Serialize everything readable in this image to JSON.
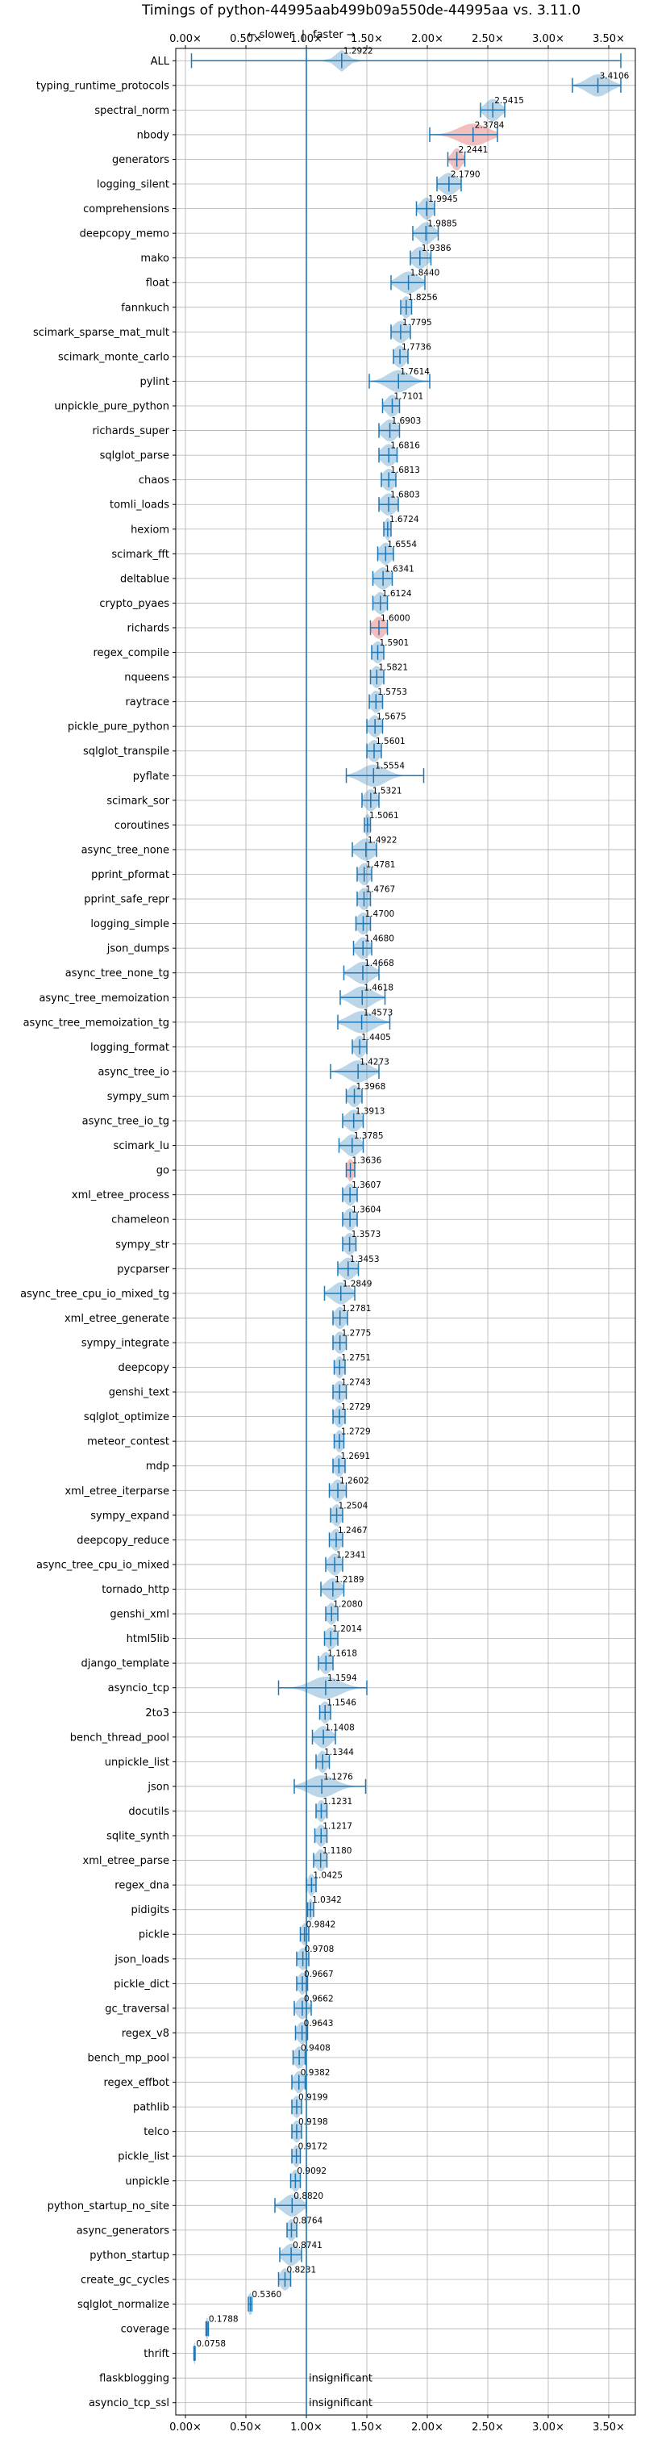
{
  "chart_data": {
    "type": "violin",
    "title": "Timings of python-44995aab499b09a550de-44995aa vs. 3.11.0",
    "direction_note": {
      "slower": "← slower",
      "divider": "|",
      "faster": "faster →"
    },
    "xlim": [
      -0.08,
      3.72
    ],
    "xticks": [
      0.0,
      0.5,
      1.0,
      1.5,
      2.0,
      2.5,
      3.0,
      3.5
    ],
    "xtick_labels": [
      "0.00×",
      "0.50×",
      "1.00×",
      "1.50×",
      "2.00×",
      "2.50×",
      "3.00×",
      "3.50×"
    ],
    "grid": true,
    "colors": {
      "normal": "#1f77b4",
      "significant_slower": "#d62728",
      "grid": "#b0b0b0",
      "reference": "#1f77b4"
    },
    "benchmarks": [
      {
        "name": "ALL",
        "median": 1.2922,
        "label": "1.2922",
        "lo": 0.05,
        "hi": 3.6,
        "spread": 0.05,
        "style": "all"
      },
      {
        "name": "typing_runtime_protocols",
        "median": 3.4106,
        "label": "3.4106",
        "lo": 3.2,
        "hi": 3.6,
        "spread": 0.09
      },
      {
        "name": "spectral_norm",
        "median": 2.5415,
        "label": "2.5415",
        "lo": 2.44,
        "hi": 2.64,
        "spread": 0.06
      },
      {
        "name": "nbody",
        "median": 2.3784,
        "label": "2.3784",
        "lo": 2.02,
        "hi": 2.58,
        "spread": 0.12,
        "tint": "red"
      },
      {
        "name": "generators",
        "median": 2.2441,
        "label": "2.2441",
        "lo": 2.17,
        "hi": 2.31,
        "spread": 0.04,
        "tint": "red"
      },
      {
        "name": "logging_silent",
        "median": 2.179,
        "label": "2.1790",
        "lo": 2.08,
        "hi": 2.28,
        "spread": 0.07
      },
      {
        "name": "comprehensions",
        "median": 1.9945,
        "label": "1.9945",
        "lo": 1.91,
        "hi": 2.06,
        "spread": 0.05
      },
      {
        "name": "deepcopy_memo",
        "median": 1.9885,
        "label": "1.9885",
        "lo": 1.88,
        "hi": 2.09,
        "spread": 0.06
      },
      {
        "name": "mako",
        "median": 1.9386,
        "label": "1.9386",
        "lo": 1.86,
        "hi": 2.03,
        "spread": 0.06
      },
      {
        "name": "float",
        "median": 1.844,
        "label": "1.8440",
        "lo": 1.7,
        "hi": 1.98,
        "spread": 0.08
      },
      {
        "name": "fannkuch",
        "median": 1.8256,
        "label": "1.8256",
        "lo": 1.78,
        "hi": 1.87,
        "spread": 0.04
      },
      {
        "name": "scimark_sparse_mat_mult",
        "median": 1.7795,
        "label": "1.7795",
        "lo": 1.7,
        "hi": 1.86,
        "spread": 0.06
      },
      {
        "name": "scimark_monte_carlo",
        "median": 1.7736,
        "label": "1.7736",
        "lo": 1.72,
        "hi": 1.84,
        "spread": 0.05
      },
      {
        "name": "pylint",
        "median": 1.7614,
        "label": "1.7614",
        "lo": 1.52,
        "hi": 2.02,
        "spread": 0.09
      },
      {
        "name": "unpickle_pure_python",
        "median": 1.7101,
        "label": "1.7101",
        "lo": 1.63,
        "hi": 1.77,
        "spread": 0.05
      },
      {
        "name": "richards_super",
        "median": 1.6903,
        "label": "1.6903",
        "lo": 1.6,
        "hi": 1.77,
        "spread": 0.06
      },
      {
        "name": "sqlglot_parse",
        "median": 1.6816,
        "label": "1.6816",
        "lo": 1.6,
        "hi": 1.75,
        "spread": 0.06
      },
      {
        "name": "chaos",
        "median": 1.6813,
        "label": "1.6813",
        "lo": 1.62,
        "hi": 1.74,
        "spread": 0.05
      },
      {
        "name": "tomli_loads",
        "median": 1.6803,
        "label": "1.6803",
        "lo": 1.6,
        "hi": 1.76,
        "spread": 0.06
      },
      {
        "name": "hexiom",
        "median": 1.6724,
        "label": "1.6724",
        "lo": 1.64,
        "hi": 1.7,
        "spread": 0.025
      },
      {
        "name": "scimark_fft",
        "median": 1.6554,
        "label": "1.6554",
        "lo": 1.59,
        "hi": 1.72,
        "spread": 0.05
      },
      {
        "name": "deltablue",
        "median": 1.6341,
        "label": "1.6341",
        "lo": 1.55,
        "hi": 1.71,
        "spread": 0.06
      },
      {
        "name": "crypto_pyaes",
        "median": 1.6124,
        "label": "1.6124",
        "lo": 1.55,
        "hi": 1.67,
        "spread": 0.05
      },
      {
        "name": "richards",
        "median": 1.6,
        "label": "1.6000",
        "lo": 1.53,
        "hi": 1.67,
        "spread": 0.05,
        "tint": "red"
      },
      {
        "name": "regex_compile",
        "median": 1.5901,
        "label": "1.5901",
        "lo": 1.54,
        "hi": 1.64,
        "spread": 0.045
      },
      {
        "name": "nqueens",
        "median": 1.5821,
        "label": "1.5821",
        "lo": 1.53,
        "hi": 1.64,
        "spread": 0.045
      },
      {
        "name": "raytrace",
        "median": 1.5753,
        "label": "1.5753",
        "lo": 1.52,
        "hi": 1.63,
        "spread": 0.045
      },
      {
        "name": "pickle_pure_python",
        "median": 1.5675,
        "label": "1.5675",
        "lo": 1.5,
        "hi": 1.63,
        "spread": 0.05
      },
      {
        "name": "sqlglot_transpile",
        "median": 1.5601,
        "label": "1.5601",
        "lo": 1.5,
        "hi": 1.62,
        "spread": 0.05
      },
      {
        "name": "pyflate",
        "median": 1.5554,
        "label": "1.5554",
        "lo": 1.33,
        "hi": 1.97,
        "spread": 0.1
      },
      {
        "name": "scimark_sor",
        "median": 1.5321,
        "label": "1.5321",
        "lo": 1.46,
        "hi": 1.6,
        "spread": 0.05
      },
      {
        "name": "coroutines",
        "median": 1.5061,
        "label": "1.5061",
        "lo": 1.48,
        "hi": 1.53,
        "spread": 0.025
      },
      {
        "name": "async_tree_none",
        "median": 1.4922,
        "label": "1.4922",
        "lo": 1.38,
        "hi": 1.58,
        "spread": 0.07
      },
      {
        "name": "pprint_pformat",
        "median": 1.4781,
        "label": "1.4781",
        "lo": 1.42,
        "hi": 1.54,
        "spread": 0.045
      },
      {
        "name": "pprint_safe_repr",
        "median": 1.4767,
        "label": "1.4767",
        "lo": 1.42,
        "hi": 1.53,
        "spread": 0.045
      },
      {
        "name": "logging_simple",
        "median": 1.47,
        "label": "1.4700",
        "lo": 1.41,
        "hi": 1.53,
        "spread": 0.05
      },
      {
        "name": "json_dumps",
        "median": 1.468,
        "label": "1.4680",
        "lo": 1.39,
        "hi": 1.54,
        "spread": 0.05
      },
      {
        "name": "async_tree_none_tg",
        "median": 1.4668,
        "label": "1.4668",
        "lo": 1.31,
        "hi": 1.6,
        "spread": 0.08
      },
      {
        "name": "async_tree_memoization",
        "median": 1.4618,
        "label": "1.4618",
        "lo": 1.28,
        "hi": 1.65,
        "spread": 0.09
      },
      {
        "name": "async_tree_memoization_tg",
        "median": 1.4573,
        "label": "1.4573",
        "lo": 1.26,
        "hi": 1.69,
        "spread": 0.1
      },
      {
        "name": "logging_format",
        "median": 1.4405,
        "label": "1.4405",
        "lo": 1.38,
        "hi": 1.5,
        "spread": 0.045
      },
      {
        "name": "async_tree_io",
        "median": 1.4273,
        "label": "1.4273",
        "lo": 1.2,
        "hi": 1.6,
        "spread": 0.09
      },
      {
        "name": "sympy_sum",
        "median": 1.3968,
        "label": "1.3968",
        "lo": 1.33,
        "hi": 1.46,
        "spread": 0.05
      },
      {
        "name": "async_tree_io_tg",
        "median": 1.3913,
        "label": "1.3913",
        "lo": 1.3,
        "hi": 1.47,
        "spread": 0.06
      },
      {
        "name": "scimark_lu",
        "median": 1.3785,
        "label": "1.3785",
        "lo": 1.27,
        "hi": 1.47,
        "spread": 0.06
      },
      {
        "name": "go",
        "median": 1.3636,
        "label": "1.3636",
        "lo": 1.33,
        "hi": 1.4,
        "spread": 0.03,
        "tint": "red"
      },
      {
        "name": "xml_etree_process",
        "median": 1.3607,
        "label": "1.3607",
        "lo": 1.3,
        "hi": 1.42,
        "spread": 0.045
      },
      {
        "name": "chameleon",
        "median": 1.3604,
        "label": "1.3604",
        "lo": 1.3,
        "hi": 1.42,
        "spread": 0.045
      },
      {
        "name": "sympy_str",
        "median": 1.3573,
        "label": "1.3573",
        "lo": 1.3,
        "hi": 1.41,
        "spread": 0.045
      },
      {
        "name": "pycparser",
        "median": 1.3453,
        "label": "1.3453",
        "lo": 1.26,
        "hi": 1.43,
        "spread": 0.06
      },
      {
        "name": "async_tree_cpu_io_mixed_tg",
        "median": 1.2849,
        "label": "1.2849",
        "lo": 1.15,
        "hi": 1.4,
        "spread": 0.07
      },
      {
        "name": "xml_etree_generate",
        "median": 1.2781,
        "label": "1.2781",
        "lo": 1.22,
        "hi": 1.34,
        "spread": 0.045
      },
      {
        "name": "sympy_integrate",
        "median": 1.2775,
        "label": "1.2775",
        "lo": 1.22,
        "hi": 1.33,
        "spread": 0.045
      },
      {
        "name": "deepcopy",
        "median": 1.2751,
        "label": "1.2751",
        "lo": 1.23,
        "hi": 1.32,
        "spread": 0.035
      },
      {
        "name": "genshi_text",
        "median": 1.2743,
        "label": "1.2743",
        "lo": 1.22,
        "hi": 1.33,
        "spread": 0.045
      },
      {
        "name": "sqlglot_optimize",
        "median": 1.2729,
        "label": "1.2729",
        "lo": 1.22,
        "hi": 1.32,
        "spread": 0.04
      },
      {
        "name": "meteor_contest",
        "median": 1.2729,
        "label": "1.2729",
        "lo": 1.23,
        "hi": 1.31,
        "spread": 0.035
      },
      {
        "name": "mdp",
        "median": 1.2691,
        "label": "1.2691",
        "lo": 1.22,
        "hi": 1.32,
        "spread": 0.04
      },
      {
        "name": "xml_etree_iterparse",
        "median": 1.2602,
        "label": "1.2602",
        "lo": 1.19,
        "hi": 1.33,
        "spread": 0.05
      },
      {
        "name": "sympy_expand",
        "median": 1.2504,
        "label": "1.2504",
        "lo": 1.2,
        "hi": 1.3,
        "spread": 0.04
      },
      {
        "name": "deepcopy_reduce",
        "median": 1.2467,
        "label": "1.2467",
        "lo": 1.19,
        "hi": 1.3,
        "spread": 0.045
      },
      {
        "name": "async_tree_cpu_io_mixed",
        "median": 1.2341,
        "label": "1.2341",
        "lo": 1.16,
        "hi": 1.3,
        "spread": 0.05
      },
      {
        "name": "tornado_http",
        "median": 1.2189,
        "label": "1.2189",
        "lo": 1.12,
        "hi": 1.31,
        "spread": 0.06
      },
      {
        "name": "genshi_xml",
        "median": 1.208,
        "label": "1.2080",
        "lo": 1.16,
        "hi": 1.26,
        "spread": 0.04
      },
      {
        "name": "html5lib",
        "median": 1.2014,
        "label": "1.2014",
        "lo": 1.15,
        "hi": 1.26,
        "spread": 0.045
      },
      {
        "name": "django_template",
        "median": 1.1618,
        "label": "1.1618",
        "lo": 1.1,
        "hi": 1.22,
        "spread": 0.045
      },
      {
        "name": "asyncio_tcp",
        "median": 1.1594,
        "label": "1.1594",
        "lo": 0.77,
        "hi": 1.5,
        "spread": 0.12
      },
      {
        "name": "2to3",
        "median": 1.1546,
        "label": "1.1546",
        "lo": 1.11,
        "hi": 1.2,
        "spread": 0.04
      },
      {
        "name": "bench_thread_pool",
        "median": 1.1408,
        "label": "1.1408",
        "lo": 1.05,
        "hi": 1.24,
        "spread": 0.06
      },
      {
        "name": "unpickle_list",
        "median": 1.1344,
        "label": "1.1344",
        "lo": 1.08,
        "hi": 1.19,
        "spread": 0.04
      },
      {
        "name": "json",
        "median": 1.1276,
        "label": "1.1276",
        "lo": 0.9,
        "hi": 1.49,
        "spread": 0.11
      },
      {
        "name": "docutils",
        "median": 1.1231,
        "label": "1.1231",
        "lo": 1.08,
        "hi": 1.17,
        "spread": 0.035
      },
      {
        "name": "sqlite_synth",
        "median": 1.1217,
        "label": "1.1217",
        "lo": 1.07,
        "hi": 1.17,
        "spread": 0.04
      },
      {
        "name": "xml_etree_parse",
        "median": 1.118,
        "label": "1.1180",
        "lo": 1.06,
        "hi": 1.17,
        "spread": 0.04
      },
      {
        "name": "regex_dna",
        "median": 1.0425,
        "label": "1.0425",
        "lo": 1.0,
        "hi": 1.08,
        "spread": 0.03
      },
      {
        "name": "pidigits",
        "median": 1.0342,
        "label": "1.0342",
        "lo": 1.01,
        "hi": 1.06,
        "spread": 0.02
      },
      {
        "name": "pickle",
        "median": 0.9842,
        "label": "0.9842",
        "lo": 0.95,
        "hi": 1.02,
        "spread": 0.03
      },
      {
        "name": "json_loads",
        "median": 0.9708,
        "label": "0.9708",
        "lo": 0.92,
        "hi": 1.02,
        "spread": 0.04
      },
      {
        "name": "pickle_dict",
        "median": 0.9667,
        "label": "0.9667",
        "lo": 0.92,
        "hi": 1.01,
        "spread": 0.035
      },
      {
        "name": "gc_traversal",
        "median": 0.9662,
        "label": "0.9662",
        "lo": 0.9,
        "hi": 1.04,
        "spread": 0.045
      },
      {
        "name": "regex_v8",
        "median": 0.9643,
        "label": "0.9643",
        "lo": 0.91,
        "hi": 1.01,
        "spread": 0.04
      },
      {
        "name": "bench_mp_pool",
        "median": 0.9408,
        "label": "0.9408",
        "lo": 0.89,
        "hi": 0.99,
        "spread": 0.04
      },
      {
        "name": "regex_effbot",
        "median": 0.9382,
        "label": "0.9382",
        "lo": 0.88,
        "hi": 0.99,
        "spread": 0.04
      },
      {
        "name": "pathlib",
        "median": 0.9199,
        "label": "0.9199",
        "lo": 0.88,
        "hi": 0.96,
        "spread": 0.035
      },
      {
        "name": "telco",
        "median": 0.9198,
        "label": "0.9198",
        "lo": 0.88,
        "hi": 0.96,
        "spread": 0.035
      },
      {
        "name": "pickle_list",
        "median": 0.9172,
        "label": "0.9172",
        "lo": 0.88,
        "hi": 0.95,
        "spread": 0.03
      },
      {
        "name": "unpickle",
        "median": 0.9092,
        "label": "0.9092",
        "lo": 0.87,
        "hi": 0.95,
        "spread": 0.035
      },
      {
        "name": "python_startup_no_site",
        "median": 0.882,
        "label": "0.8820",
        "lo": 0.74,
        "hi": 1.0,
        "spread": 0.07
      },
      {
        "name": "async_generators",
        "median": 0.8764,
        "label": "0.8764",
        "lo": 0.84,
        "hi": 0.92,
        "spread": 0.035
      },
      {
        "name": "python_startup",
        "median": 0.8741,
        "label": "0.8741",
        "lo": 0.78,
        "hi": 0.96,
        "spread": 0.06
      },
      {
        "name": "create_gc_cycles",
        "median": 0.8231,
        "label": "0.8231",
        "lo": 0.77,
        "hi": 0.87,
        "spread": 0.04
      },
      {
        "name": "sqlglot_normalize",
        "median": 0.536,
        "label": "0.5360",
        "lo": 0.52,
        "hi": 0.55,
        "spread": 0.02
      },
      {
        "name": "coverage",
        "median": 0.1788,
        "label": "0.1788",
        "lo": 0.17,
        "hi": 0.19,
        "spread": 0.012
      },
      {
        "name": "thrift",
        "median": 0.0758,
        "label": "0.0758",
        "lo": 0.07,
        "hi": 0.08,
        "spread": 0.008
      },
      {
        "name": "flaskblogging",
        "median": null,
        "label": "insignificant",
        "insignificant": true
      },
      {
        "name": "asyncio_tcp_ssl",
        "median": null,
        "label": "insignificant",
        "insignificant": true
      }
    ]
  }
}
